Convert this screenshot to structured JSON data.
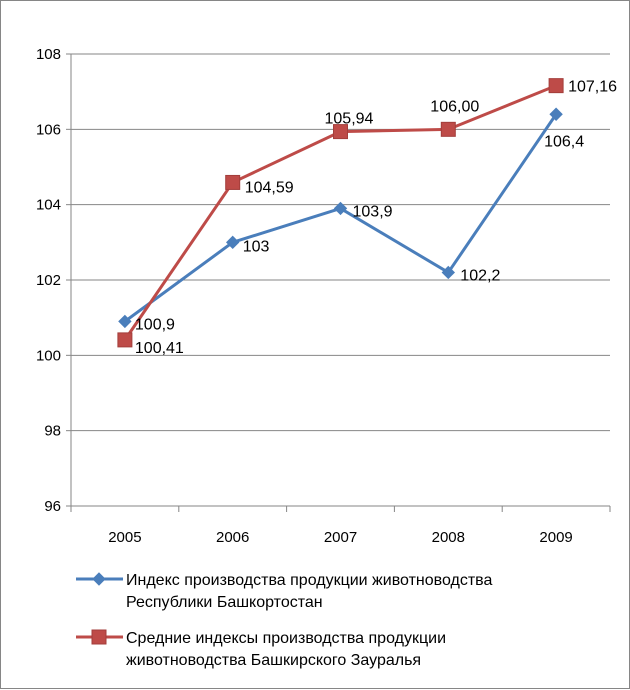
{
  "chart_data": {
    "type": "line",
    "categories": [
      "2005",
      "2006",
      "2007",
      "2008",
      "2009"
    ],
    "series": [
      {
        "name_lines": [
          "Индекс производства продукции животноводства",
          "Республики Башкортостан"
        ],
        "values": [
          100.9,
          103,
          103.9,
          102.2,
          106.4
        ],
        "labels": [
          "100,9",
          "103",
          "103,9",
          "102,2",
          "106,4"
        ],
        "color": "#4A7EBB",
        "marker": "diamond"
      },
      {
        "name_lines": [
          "Средние индексы производства продукции",
          "животноводства Башкирского Зауралья"
        ],
        "values": [
          100.41,
          104.59,
          105.94,
          106.0,
          107.16
        ],
        "labels": [
          "100,41",
          "104,59",
          "105,94",
          "106,00",
          "107,16"
        ],
        "color": "#BE4B48",
        "marker": "square"
      }
    ],
    "ylim": [
      96,
      108
    ],
    "yticks": [
      96,
      98,
      100,
      102,
      104,
      106,
      108
    ],
    "ytick_labels": [
      "96",
      "98",
      "100",
      "102",
      "104",
      "106",
      "108"
    ],
    "grid": true,
    "legend_placement": "bottom"
  }
}
